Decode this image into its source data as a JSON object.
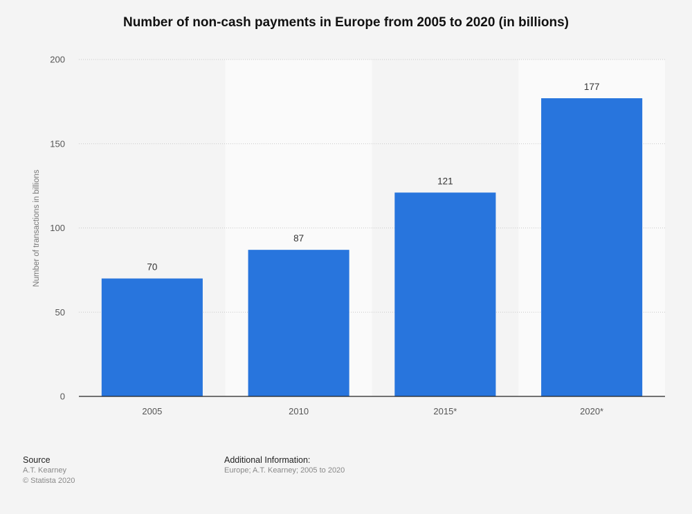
{
  "chart_data": {
    "type": "bar",
    "title": "Number of non-cash payments in Europe from 2005 to 2020 (in billions)",
    "xlabel": "",
    "ylabel": "Number of transactions in billions",
    "categories": [
      "2005",
      "2010",
      "2015*",
      "2020*"
    ],
    "values": [
      70,
      87,
      121,
      177
    ],
    "data_labels": [
      "70",
      "87",
      "121",
      "177"
    ],
    "ylim": [
      0,
      200
    ],
    "yticks": [
      0,
      50,
      100,
      150,
      200
    ],
    "grid": true,
    "bar_color": "#2875dd"
  },
  "footer": {
    "source_heading": "Source",
    "source_text": "A.T. Kearney",
    "copyright": "© Statista 2020",
    "info_heading": "Additional Information:",
    "info_text": "Europe; A.T. Kearney; 2005 to 2020"
  }
}
